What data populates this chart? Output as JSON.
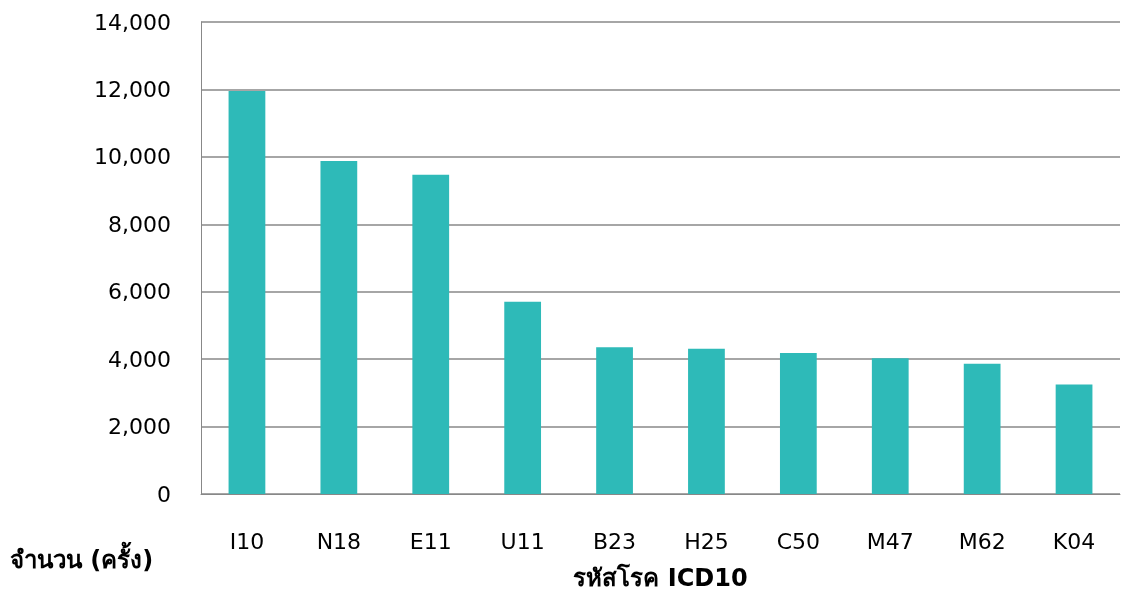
{
  "chart_data": {
    "type": "bar",
    "categories": [
      "I10",
      "N18",
      "E11",
      "U11",
      "B23",
      "H25",
      "C50",
      "M47",
      "M62",
      "K04"
    ],
    "values": [
      11950,
      9880,
      9470,
      5700,
      4350,
      4310,
      4180,
      4030,
      3860,
      3250
    ],
    "color": "#2ebab8",
    "xlabel": "รหัสโรค ICD10",
    "ylabel": "จำนวน (ครั้ง)",
    "ylim": [
      0,
      14000
    ],
    "yticks": [
      0,
      {
        "value": 2000,
        "label": "2,000"
      },
      {
        "value": 4000,
        "label": "4,000"
      },
      {
        "value": 6000,
        "label": "6,000"
      },
      {
        "value": 8000,
        "label": "8,000"
      },
      {
        "value": 10000,
        "label": "10,000"
      },
      {
        "value": 12000,
        "label": "12,000"
      },
      {
        "value": 14000,
        "label": "14,000"
      }
    ],
    "grid": "y"
  }
}
